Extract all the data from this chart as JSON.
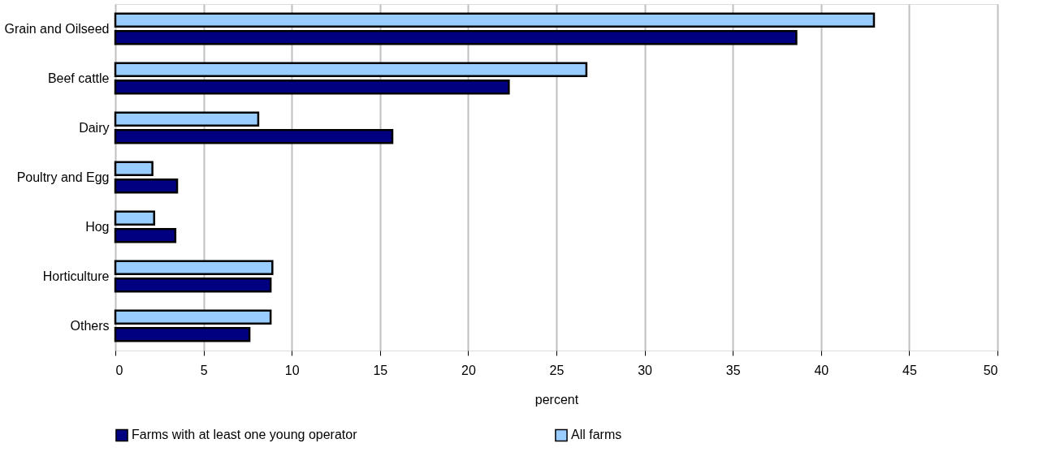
{
  "chart_data": {
    "type": "bar",
    "orientation": "horizontal",
    "xlabel": "percent",
    "categories": [
      "Grain and Oilseed",
      "Beef cattle",
      "Dairy",
      "Poultry and Egg",
      "Hog",
      "Horticulture",
      "Others"
    ],
    "series": [
      {
        "name": "Farms with at least one young operator",
        "color": "#000080",
        "values": [
          38.6,
          22.3,
          15.7,
          3.5,
          3.4,
          8.8,
          7.6
        ]
      },
      {
        "name": "All farms",
        "color": "#99ccff",
        "values": [
          43.0,
          26.7,
          8.1,
          2.1,
          2.2,
          8.9,
          8.8
        ]
      }
    ],
    "xlim": [
      0,
      50
    ],
    "xticks": [
      0,
      5,
      10,
      15,
      20,
      25,
      30,
      35,
      40,
      45,
      50
    ],
    "grid": "x",
    "legend": "bottom"
  }
}
